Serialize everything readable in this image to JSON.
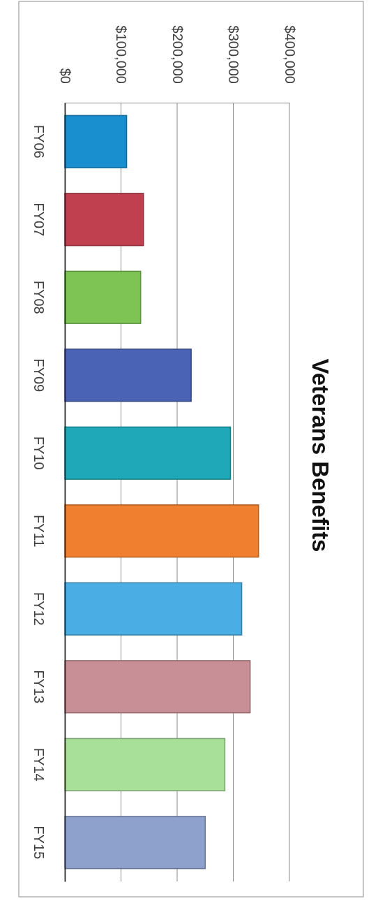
{
  "chart_data": {
    "type": "bar",
    "orientation": "horizontal",
    "title": "Veterans Benefits",
    "categories": [
      "FY06",
      "FY07",
      "FY08",
      "FY09",
      "FY10",
      "FY11",
      "FY12",
      "FY13",
      "FY14",
      "FY15"
    ],
    "values": [
      110000,
      140000,
      135000,
      225000,
      295000,
      345000,
      315000,
      330000,
      285000,
      250000
    ],
    "colors": [
      "#1a8fd0",
      "#c0404f",
      "#7ec455",
      "#4a63b5",
      "#1fa9b8",
      "#f08030",
      "#4aaee5",
      "#c98f96",
      "#a8e09a",
      "#8ea0cc"
    ],
    "xlim": [
      0,
      400000
    ],
    "xticks": [
      {
        "value": 0,
        "label": "$0"
      },
      {
        "value": 100000,
        "label": "$100,000"
      },
      {
        "value": 200000,
        "label": "$200,000"
      },
      {
        "value": 300000,
        "label": "$300,000"
      },
      {
        "value": 400000,
        "label": "$400,000"
      }
    ],
    "grid": "x"
  }
}
